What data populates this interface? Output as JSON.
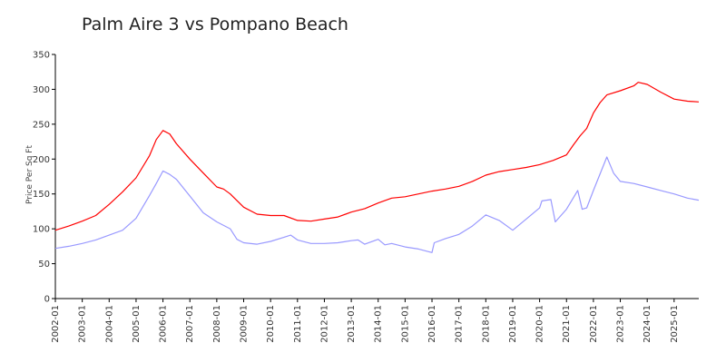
{
  "chart_data": {
    "type": "line",
    "title": "Palm Aire 3 vs Pompano Beach",
    "xlabel": "",
    "ylabel": "Price Per Sq Ft",
    "ylim": [
      0,
      350
    ],
    "yticks": [
      0,
      50,
      100,
      150,
      200,
      250,
      300,
      350
    ],
    "xlim": [
      "2002-01",
      "2025-12"
    ],
    "xticks": [
      "2002-01",
      "2003-01",
      "2004-01",
      "2005-01",
      "2006-01",
      "2007-01",
      "2008-01",
      "2009-01",
      "2010-01",
      "2011-01",
      "2012-01",
      "2013-01",
      "2014-01",
      "2015-01",
      "2016-01",
      "2017-01",
      "2018-01",
      "2019-01",
      "2020-01",
      "2021-01",
      "2022-01",
      "2023-01",
      "2024-01",
      "2025-01"
    ],
    "grid": false,
    "legend": "none",
    "series": [
      {
        "color": "#ff0000",
        "points": [
          [
            "2002-01",
            98
          ],
          [
            "2002-07",
            104
          ],
          [
            "2003-01",
            111
          ],
          [
            "2003-07",
            119
          ],
          [
            "2004-01",
            135
          ],
          [
            "2004-07",
            153
          ],
          [
            "2005-01",
            173
          ],
          [
            "2005-07",
            205
          ],
          [
            "2005-10",
            228
          ],
          [
            "2006-01",
            241
          ],
          [
            "2006-04",
            236
          ],
          [
            "2006-07",
            222
          ],
          [
            "2007-01",
            200
          ],
          [
            "2007-07",
            180
          ],
          [
            "2008-01",
            160
          ],
          [
            "2008-04",
            157
          ],
          [
            "2008-07",
            150
          ],
          [
            "2009-01",
            131
          ],
          [
            "2009-07",
            121
          ],
          [
            "2010-01",
            119
          ],
          [
            "2010-07",
            119
          ],
          [
            "2011-01",
            112
          ],
          [
            "2011-07",
            111
          ],
          [
            "2012-01",
            114
          ],
          [
            "2012-07",
            117
          ],
          [
            "2013-01",
            124
          ],
          [
            "2013-07",
            129
          ],
          [
            "2014-01",
            137
          ],
          [
            "2014-07",
            144
          ],
          [
            "2015-01",
            146
          ],
          [
            "2015-07",
            150
          ],
          [
            "2016-01",
            154
          ],
          [
            "2016-07",
            157
          ],
          [
            "2017-01",
            161
          ],
          [
            "2017-07",
            168
          ],
          [
            "2018-01",
            177
          ],
          [
            "2018-07",
            182
          ],
          [
            "2019-01",
            185
          ],
          [
            "2019-07",
            188
          ],
          [
            "2020-01",
            192
          ],
          [
            "2020-07",
            198
          ],
          [
            "2021-01",
            206
          ],
          [
            "2021-04",
            220
          ],
          [
            "2021-07",
            233
          ],
          [
            "2021-10",
            244
          ],
          [
            "2022-01",
            266
          ],
          [
            "2022-04",
            281
          ],
          [
            "2022-07",
            292
          ],
          [
            "2023-01",
            298
          ],
          [
            "2023-07",
            305
          ],
          [
            "2023-09",
            310
          ],
          [
            "2024-01",
            307
          ],
          [
            "2024-07",
            296
          ],
          [
            "2025-01",
            286
          ],
          [
            "2025-07",
            283
          ],
          [
            "2025-12",
            282
          ]
        ]
      },
      {
        "color": "#9999ff",
        "points": [
          [
            "2002-01",
            72
          ],
          [
            "2002-07",
            75
          ],
          [
            "2003-01",
            79
          ],
          [
            "2003-07",
            84
          ],
          [
            "2004-01",
            91
          ],
          [
            "2004-07",
            98
          ],
          [
            "2005-01",
            115
          ],
          [
            "2005-07",
            148
          ],
          [
            "2005-10",
            165
          ],
          [
            "2006-01",
            183
          ],
          [
            "2006-04",
            178
          ],
          [
            "2006-07",
            171
          ],
          [
            "2007-01",
            147
          ],
          [
            "2007-07",
            123
          ],
          [
            "2008-01",
            110
          ],
          [
            "2008-07",
            100
          ],
          [
            "2008-10",
            85
          ],
          [
            "2009-01",
            80
          ],
          [
            "2009-07",
            78
          ],
          [
            "2010-01",
            82
          ],
          [
            "2010-07",
            88
          ],
          [
            "2010-10",
            91
          ],
          [
            "2011-01",
            84
          ],
          [
            "2011-07",
            79
          ],
          [
            "2012-01",
            79
          ],
          [
            "2012-07",
            80
          ],
          [
            "2013-01",
            83
          ],
          [
            "2013-04",
            84
          ],
          [
            "2013-07",
            78
          ],
          [
            "2014-01",
            85
          ],
          [
            "2014-04",
            77
          ],
          [
            "2014-07",
            79
          ],
          [
            "2015-01",
            74
          ],
          [
            "2015-07",
            71
          ],
          [
            "2016-01",
            66
          ],
          [
            "2016-02",
            80
          ],
          [
            "2016-07",
            86
          ],
          [
            "2017-01",
            92
          ],
          [
            "2017-07",
            104
          ],
          [
            "2018-01",
            120
          ],
          [
            "2018-07",
            112
          ],
          [
            "2019-01",
            98
          ],
          [
            "2019-07",
            114
          ],
          [
            "2020-01",
            130
          ],
          [
            "2020-02",
            140
          ],
          [
            "2020-06",
            142
          ],
          [
            "2020-08",
            110
          ],
          [
            "2021-01",
            128
          ],
          [
            "2021-06",
            155
          ],
          [
            "2021-08",
            128
          ],
          [
            "2021-10",
            130
          ],
          [
            "2022-01",
            155
          ],
          [
            "2022-07",
            203
          ],
          [
            "2022-10",
            180
          ],
          [
            "2023-01",
            168
          ],
          [
            "2023-07",
            165
          ],
          [
            "2024-01",
            160
          ],
          [
            "2024-07",
            155
          ],
          [
            "2025-01",
            150
          ],
          [
            "2025-07",
            144
          ],
          [
            "2025-12",
            141
          ]
        ]
      }
    ]
  }
}
